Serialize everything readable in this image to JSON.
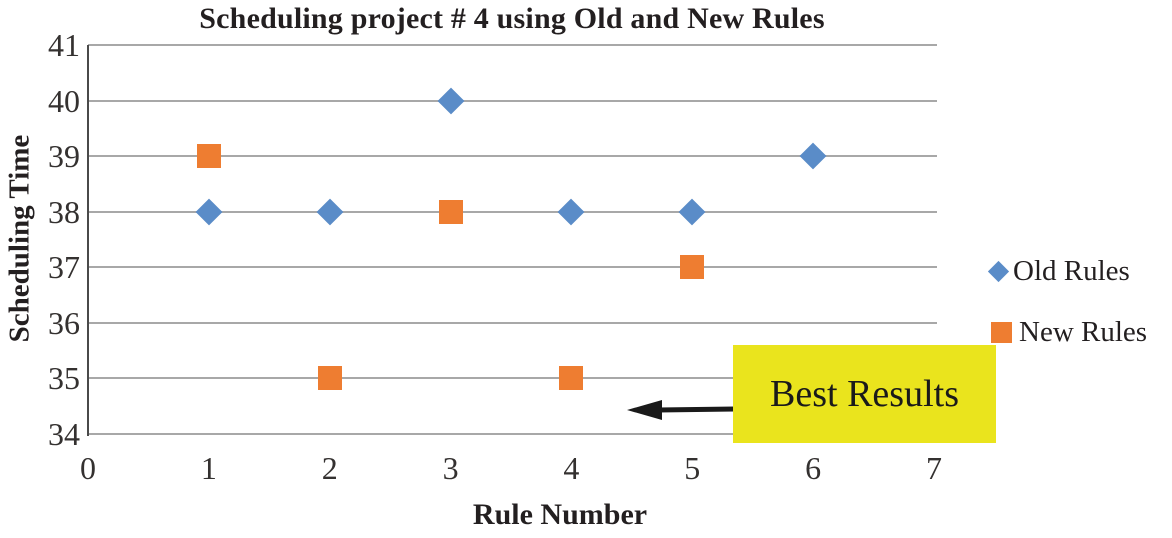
{
  "title": "Scheduling project # 4 using Old and New Rules",
  "annotation": {
    "label": "Best Results",
    "background": "#eae41d",
    "arrow_color": "#1a1a1a",
    "arrow_tip_data_coords": {
      "x": 4.45,
      "y": 34.4
    }
  },
  "colors": {
    "old_rules_blue": "#5a8cc8",
    "new_rules_orange": "#ee7d31",
    "gridline_gray": "#a8a8a8",
    "axis_line_gray": "#4a4a4a",
    "text_black": "#231f20",
    "annotation_yellow": "#eae41d",
    "plot_background": "#ffffff"
  },
  "chart_data": {
    "type": "scatter",
    "title": "Scheduling project # 4 using Old and New Rules",
    "xlabel": "Rule Number",
    "ylabel": "Scheduling Time",
    "xlim": [
      0,
      7
    ],
    "ylim": [
      34,
      41
    ],
    "xticks": [
      0,
      1,
      2,
      3,
      4,
      5,
      6,
      7
    ],
    "yticks": [
      34,
      35,
      36,
      37,
      38,
      39,
      40,
      41
    ],
    "grid": "horizontal",
    "legend_position": "right",
    "series": [
      {
        "name": "Old Rules",
        "marker": "diamond",
        "color": "#5a8cc8",
        "points": [
          [
            1,
            38
          ],
          [
            2,
            38
          ],
          [
            3,
            40
          ],
          [
            4,
            38
          ],
          [
            5,
            38
          ],
          [
            6,
            39
          ]
        ]
      },
      {
        "name": "New Rules",
        "marker": "square",
        "color": "#ee7d31",
        "points": [
          [
            1,
            39
          ],
          [
            2,
            35
          ],
          [
            3,
            38
          ],
          [
            4,
            35
          ],
          [
            5,
            37
          ]
        ]
      }
    ],
    "annotations": [
      {
        "text": "Best Results",
        "style": "yellow-box",
        "arrow": "points-left-toward-x4.5-y34.4"
      }
    ]
  }
}
